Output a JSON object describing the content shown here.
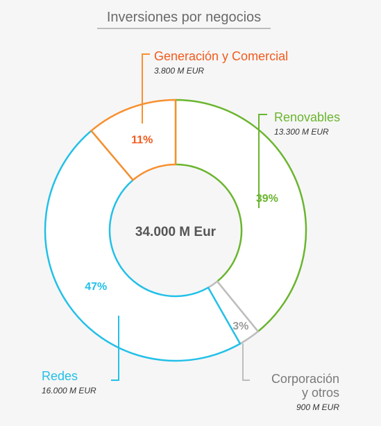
{
  "chart_data": {
    "type": "pie",
    "variant": "donut",
    "title": "Inversiones por negocios",
    "center_label": "34.000 M Eur",
    "categories": [
      "Renovables",
      "Corporación y otros",
      "Redes",
      "Generación y Comercial"
    ],
    "values": [
      13300,
      900,
      16000,
      3800
    ],
    "value_labels": [
      "13.300 M EUR",
      "900 M EUR",
      "16.000 M EUR",
      "3.800 M EUR"
    ],
    "percent_labels": [
      "39%",
      "3%",
      "47%",
      "11%"
    ],
    "colors": [
      "#6ab52e",
      "#bdbdbd",
      "#22c0e8",
      "#f7902e"
    ],
    "label_colors": [
      "#6ab52e",
      "#7a7a7a",
      "#22c0e8",
      "#f25a1c"
    ],
    "name_lines": [
      [
        "Renovables"
      ],
      [
        "Corporación",
        "y otros"
      ],
      [
        "Redes"
      ],
      [
        "Generación y Comercial"
      ]
    ]
  }
}
